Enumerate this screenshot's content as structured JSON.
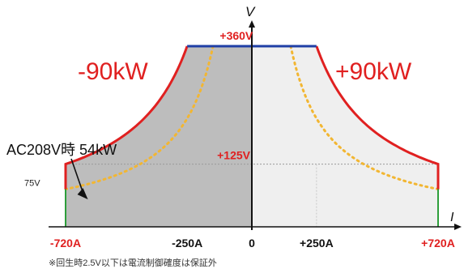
{
  "chart_data": {
    "type": "area",
    "title": "",
    "xlabel": "I",
    "ylabel": "V",
    "xlim": [
      -720,
      720
    ],
    "ylim": [
      0,
      360
    ],
    "x_ticks": [
      {
        "value": -720,
        "label": "-720A",
        "color": "#e02020"
      },
      {
        "value": -250,
        "label": "-250A",
        "color": "#111111"
      },
      {
        "value": 0,
        "label": "0",
        "color": "#111111"
      },
      {
        "value": 250,
        "label": "+250A",
        "color": "#111111"
      },
      {
        "value": 720,
        "label": "+720A",
        "color": "#e02020"
      }
    ],
    "y_annotations": [
      {
        "value": 360,
        "label": "+360V",
        "color": "#e02020"
      },
      {
        "value": 125,
        "label": "+125V",
        "color": "#e02020"
      },
      {
        "value": 75,
        "label": "75V",
        "color": "#222222"
      }
    ],
    "region_labels": [
      {
        "label": "-90kW",
        "side": "left",
        "color": "#e02020"
      },
      {
        "label": "+90kW",
        "side": "right",
        "color": "#e02020"
      }
    ],
    "series": [
      {
        "kind": "power_limit",
        "power_w": 90000,
        "v_max": 360,
        "i_max": 720,
        "v_min": 75,
        "color": "#e02020"
      },
      {
        "kind": "power_limit_dotted",
        "label": "AC208V時 54kW",
        "power_w": 54000,
        "v_max": 360,
        "i_max": 720,
        "v_min": 75,
        "color": "#f2b632"
      }
    ],
    "annotation": {
      "label": "AC208V時 54kW",
      "arrow_to": {
        "x": -720,
        "y": 75
      }
    },
    "footnote": "※回生時2.5V以下は電流制御確度は保証外",
    "colors": {
      "power_line": "#e02020",
      "voltage_limit": "#1f3fa6",
      "current_limit": "#2e9e3b",
      "dotted": "#f2b632",
      "regen_fill": "#bdbdbd",
      "power_fill": "#efefef",
      "axis": "#111111"
    }
  }
}
